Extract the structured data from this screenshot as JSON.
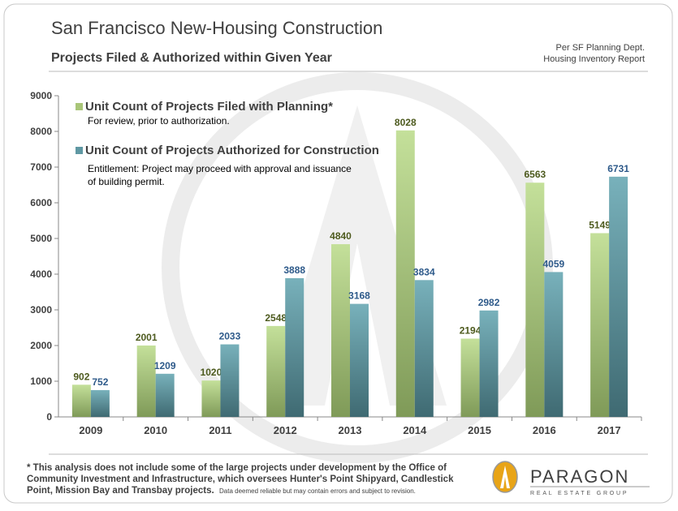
{
  "chart_data": {
    "type": "bar",
    "title": "San Francisco New-Housing Construction",
    "subtitle": "Projects Filed & Authorized within Given Year",
    "source": [
      "Per SF Planning Dept.",
      "Housing Inventory Report"
    ],
    "categories": [
      "2009",
      "2010",
      "2011",
      "2012",
      "2013",
      "2014",
      "2015",
      "2016",
      "2017"
    ],
    "series": [
      {
        "name": "Unit Count of Projects Filed with Planning*",
        "description": [
          "For review, prior to authorization."
        ],
        "color": "#a9c679",
        "label_color": "#4d5a1e",
        "values": [
          902,
          2001,
          1020,
          2548,
          4840,
          8028,
          2194,
          6563,
          5149
        ]
      },
      {
        "name": "Unit Count of Projects Authorized for Construction",
        "description": [
          "Entitlement: Project may proceed with approval and issuance",
          "of building permit."
        ],
        "color": "#5f98a3",
        "label_color": "#2e5a8a",
        "values": [
          752,
          1209,
          2033,
          3888,
          3168,
          3834,
          2982,
          4059,
          6731
        ]
      }
    ],
    "ylim": [
      0,
      9000
    ],
    "yticks": [
      0,
      1000,
      2000,
      3000,
      4000,
      5000,
      6000,
      7000,
      8000,
      9000
    ],
    "grid": false,
    "legend": "top-left"
  },
  "footnote": {
    "main": [
      "* This analysis does not include some of the large projects under development by the Office of",
      "Community Investment and Infrastructure, which oversees Hunter's Point Shipyard, Candlestick",
      "Point, Mission Bay and Transbay projects."
    ],
    "disclaimer": "Data deemed reliable but may contain errors and subject to revision."
  },
  "logo": {
    "name": "PARAGON",
    "tagline": "REAL ESTATE GROUP"
  }
}
